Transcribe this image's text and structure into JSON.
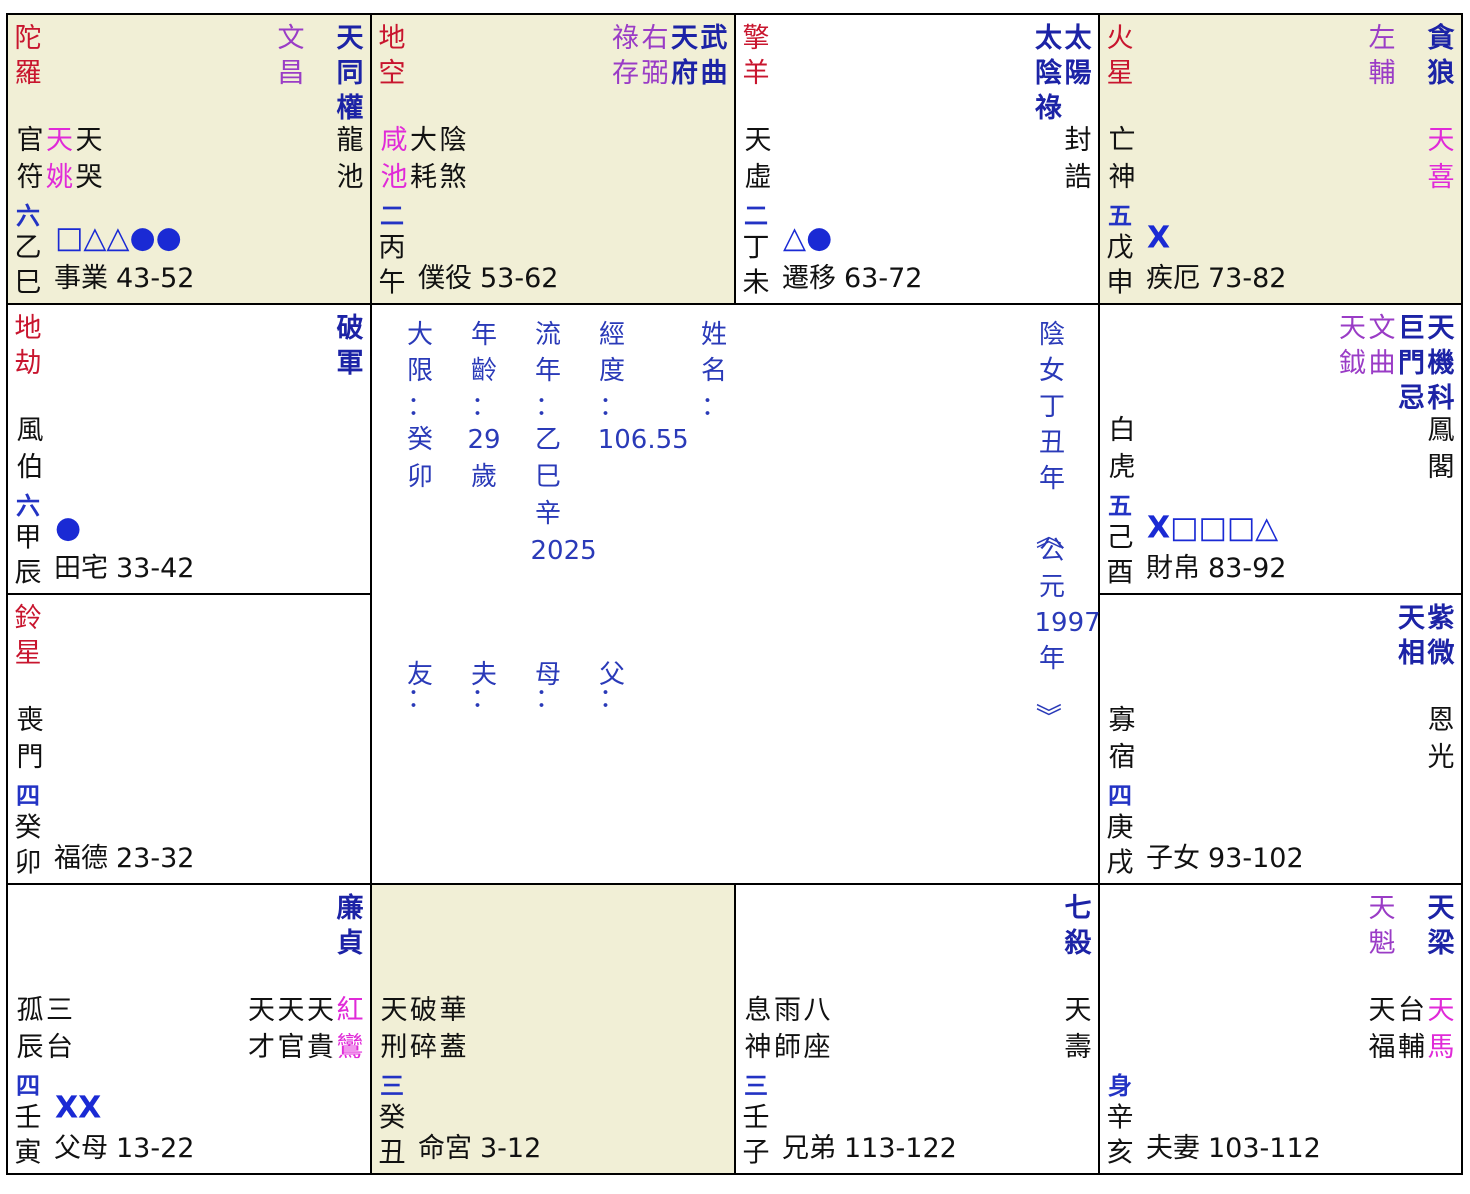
{
  "colors": {
    "main": "#1c23a6",
    "aux": "#9a3cc6",
    "malefic": "#c8152e",
    "minor": "#111111",
    "limit": "#2333c4",
    "marks": "#1a2ad4",
    "center": "#2a3ab8",
    "stem": "#111111"
  },
  "palaces": [
    {
      "background": "#f1efd6",
      "top_left": [
        "陀羅"
      ],
      "main": [
        "天同權"
      ],
      "aux": [
        "文昌"
      ],
      "minor_left": [
        {
          "text": "官符"
        },
        {
          "text": "天姚",
          "color": "#e02ad8"
        },
        {
          "text": "天哭"
        }
      ],
      "minor_right": [
        {
          "text": "龍池"
        }
      ],
      "limit": "六",
      "stem": "乙",
      "branch": "巳",
      "marks": "□△△●●",
      "palace": "事業",
      "range": "43-52"
    },
    {
      "background": "#f1efd6",
      "top_left": [
        "地空"
      ],
      "main": [
        "武曲",
        "天府"
      ],
      "aux": [
        "右弼",
        "祿存"
      ],
      "minor_left": [
        {
          "text": "咸池",
          "color": "#e02ad8"
        },
        {
          "text": "大耗"
        },
        {
          "text": "陰煞"
        }
      ],
      "limit": "二",
      "stem": "丙",
      "branch": "午",
      "palace": "僕役",
      "range": "53-62"
    },
    {
      "top_left": [
        "擎羊"
      ],
      "main": [
        "太陽",
        "太陰祿"
      ],
      "minor_left": [
        {
          "text": "天虛"
        }
      ],
      "minor_right": [
        {
          "text": "封誥"
        }
      ],
      "limit": "二",
      "stem": "丁",
      "branch": "未",
      "marks": "△●",
      "palace": "遷移",
      "range": "63-72"
    },
    {
      "background": "#f1efd6",
      "top_left": [
        "火星"
      ],
      "main": [
        "貪狼"
      ],
      "aux": [
        "左輔"
      ],
      "minor_left": [
        {
          "text": "亡神"
        }
      ],
      "minor_right": [
        {
          "text": "天喜",
          "color": "#e02ad8"
        }
      ],
      "limit": "五",
      "stem": "戊",
      "branch": "申",
      "marks": "X",
      "palace": "疾厄",
      "range": "73-82"
    },
    {
      "top_left": [
        "地劫"
      ],
      "main": [
        "破軍"
      ],
      "minor_left": [
        {
          "text": "風伯"
        }
      ],
      "limit": "六",
      "stem": "甲",
      "branch": "辰",
      "marks": "●",
      "palace": "田宅",
      "range": "33-42"
    },
    {
      "main": [
        "天機科",
        "巨門忌"
      ],
      "aux": [
        "文曲",
        "天鉞"
      ],
      "minor_left": [
        {
          "text": "白虎"
        }
      ],
      "minor_right": [
        {
          "text": "鳳閣"
        }
      ],
      "limit": "五",
      "stem": "己",
      "branch": "酉",
      "marks": "X□□□△",
      "palace": "財帛",
      "range": "83-92"
    },
    {
      "top_left": [
        "鈴星"
      ],
      "minor_left": [
        {
          "text": "喪門"
        }
      ],
      "limit": "四",
      "stem": "癸",
      "branch": "卯",
      "palace": "福德",
      "range": "23-32"
    },
    {
      "main": [
        "紫微",
        "天相"
      ],
      "minor_left": [
        {
          "text": "寡宿"
        }
      ],
      "minor_right": [
        {
          "text": "恩光"
        }
      ],
      "limit": "四",
      "stem": "庚",
      "branch": "戌",
      "palace": "子女",
      "range": "93-102"
    },
    {
      "main": [
        "廉貞"
      ],
      "minor_left": [
        {
          "text": "孤辰"
        },
        {
          "text": "三台"
        }
      ],
      "minor_right": [
        {
          "text": "紅鸞",
          "color": "#e02ad8"
        },
        {
          "text": "天貴"
        },
        {
          "text": "天官"
        },
        {
          "text": "天才"
        }
      ],
      "limit": "四",
      "stem": "壬",
      "branch": "寅",
      "marks": "XX",
      "palace": "父母",
      "range": "13-22"
    },
    {
      "background": "#f1efd6",
      "minor_left": [
        {
          "text": "天刑"
        },
        {
          "text": "破碎"
        },
        {
          "text": "華蓋"
        }
      ],
      "limit": "三",
      "stem": "癸",
      "branch": "丑",
      "palace": "命宮",
      "range": "3-12"
    },
    {
      "main": [
        "七殺"
      ],
      "minor_left": [
        {
          "text": "息神"
        },
        {
          "text": "雨師"
        },
        {
          "text": "八座"
        }
      ],
      "minor_right": [
        {
          "text": "天壽"
        }
      ],
      "limit": "三",
      "stem": "壬",
      "branch": "子",
      "palace": "兄弟",
      "range": "113-122"
    },
    {
      "main": [
        "天梁"
      ],
      "aux": [
        "天魁"
      ],
      "minor_right": [
        {
          "text": "天馬",
          "color": "#e02ad8"
        },
        {
          "text": "台輔"
        },
        {
          "text": "天福"
        }
      ],
      "limit": "身",
      "stem": "辛",
      "branch": "亥",
      "palace": "夫妻",
      "range": "103-112"
    }
  ],
  "center": {
    "fields": [
      {
        "label": "大限：",
        "value": "癸卯"
      },
      {
        "label": "年齡：",
        "value": "29歲"
      },
      {
        "label": "流年：",
        "value": "乙巳辛2025"
      },
      {
        "label": "經度：",
        "value": "106.55"
      },
      {
        "label": "姓名："
      }
    ],
    "relatives": [
      "友：",
      "夫：",
      "母：",
      "父："
    ],
    "info": "陰女丁丑年《公元1997年》"
  }
}
